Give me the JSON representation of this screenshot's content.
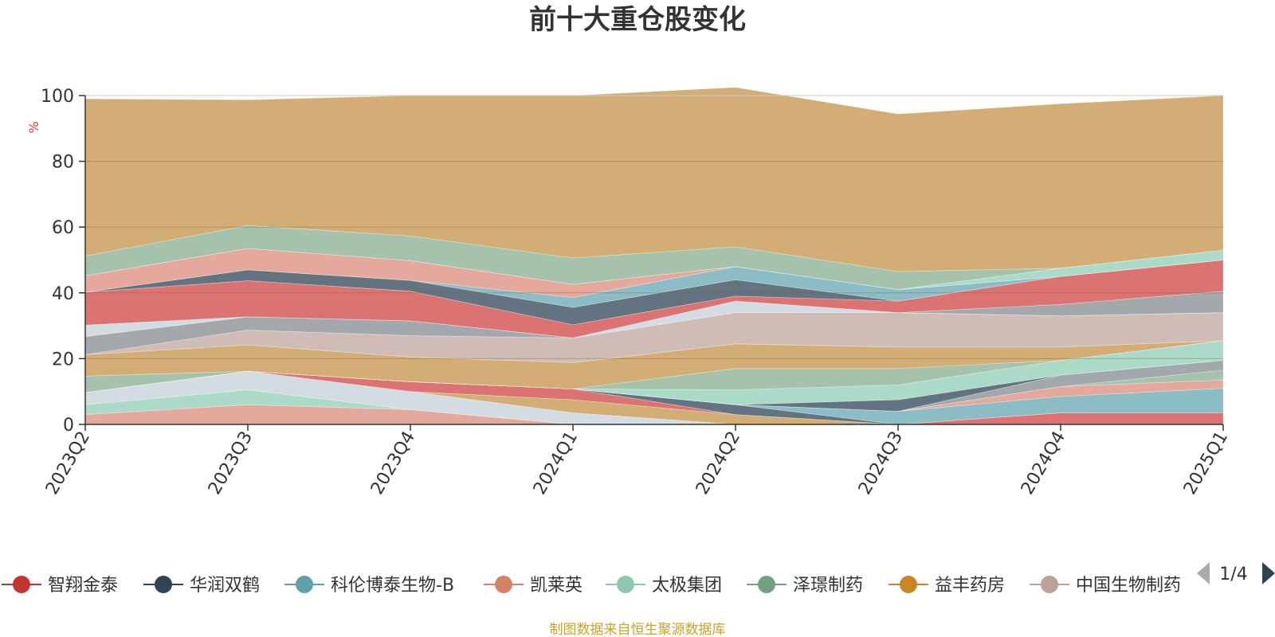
{
  "chart_data": {
    "type": "area",
    "stacked": true,
    "title": "前十大重仓股变化",
    "ylabel": "%",
    "ylim": [
      0,
      100
    ],
    "yticks": [
      0,
      20,
      40,
      60,
      80,
      100
    ],
    "grid": true,
    "categories": [
      "2023Q2",
      "2023Q3",
      "2023Q4",
      "2024Q1",
      "2024Q2",
      "2024Q3",
      "2024Q4",
      "2025Q1"
    ],
    "legend_position": "bottom",
    "legend_page": "1/4",
    "series": [
      {
        "name": "",
        "color": "#e3a497",
        "values": [
          3,
          6,
          4.5,
          0,
          0,
          0,
          0,
          0
        ]
      },
      {
        "name": "",
        "color": "#a8d8c6",
        "values": [
          3,
          4.5,
          0,
          0,
          0,
          0,
          0,
          0
        ]
      },
      {
        "name": "",
        "color": "#d0dae0",
        "values": [
          3.7,
          5.7,
          5.5,
          3.5,
          0,
          0,
          0,
          0
        ]
      },
      {
        "name": "",
        "color": "#d0a96e",
        "values": [
          0,
          0,
          0,
          4,
          3,
          0,
          0,
          0
        ]
      },
      {
        "name": "智翔金泰",
        "color": "#d96b6b",
        "values": [
          0,
          0,
          3,
          3.3,
          0,
          0,
          3.5,
          3.5
        ]
      },
      {
        "name": "华润双鹤",
        "color": "#5c6b79",
        "values": [
          0,
          0,
          0,
          0,
          3,
          0,
          0,
          0
        ]
      },
      {
        "name": "科伦博泰生物-B",
        "color": "#86b8c2",
        "values": [
          0,
          0,
          0,
          0,
          0,
          4,
          5,
          7.5
        ]
      },
      {
        "name": "凯莱英",
        "color": "#e3a497",
        "values": [
          0,
          0,
          0,
          0,
          0,
          0,
          3,
          2.5
        ]
      },
      {
        "name": "泽璟制药",
        "color": "#9fbfa8",
        "values": [
          0,
          0,
          0,
          0,
          0,
          0,
          0,
          3
        ]
      },
      {
        "name": "",
        "color": "#9ea3a8",
        "values": [
          0,
          0,
          0,
          0,
          0,
          0,
          3.5,
          3
        ]
      },
      {
        "name": "",
        "color": "#5c6b79",
        "values": [
          0,
          0,
          0,
          0,
          0,
          3.5,
          0,
          0
        ]
      },
      {
        "name": "太极集团",
        "color": "#a8d8c6",
        "values": [
          0,
          0,
          0,
          0,
          4.5,
          4.5,
          4.5,
          6
        ]
      },
      {
        "name": "",
        "color": "#9fbfa8",
        "values": [
          5,
          0,
          0,
          0,
          6.5,
          5,
          0,
          0
        ]
      },
      {
        "name": "益丰药房",
        "color": "#d0a96e",
        "values": [
          6.5,
          8,
          7.5,
          8,
          7.5,
          6.5,
          4,
          0
        ]
      },
      {
        "name": "中国生物制药",
        "color": "#cdb8b3",
        "values": [
          0,
          4.5,
          6.5,
          7.5,
          9.5,
          10.5,
          9.5,
          8.5
        ]
      },
      {
        "name": "",
        "color": "#9ea3a8",
        "values": [
          5.5,
          4,
          4.5,
          0,
          0,
          0,
          0,
          0
        ]
      },
      {
        "name": "",
        "color": "#d0dae0",
        "values": [
          3.5,
          0,
          0,
          0,
          3.5,
          0,
          0,
          0
        ]
      },
      {
        "name": "",
        "color": "#9ea3a8",
        "values": [
          0,
          0,
          0,
          0,
          0,
          0,
          3.5,
          6.5
        ]
      },
      {
        "name": "",
        "color": "#d96b6b",
        "values": [
          10,
          11,
          9,
          4,
          1.5,
          3.5,
          8.5,
          9.5
        ]
      },
      {
        "name": "",
        "color": "#5c6b79",
        "values": [
          0,
          3.3,
          3.3,
          5.3,
          5,
          0,
          0,
          0
        ]
      },
      {
        "name": "",
        "color": "#86b8c2",
        "values": [
          0,
          0,
          0,
          3,
          4,
          3.5,
          0,
          0
        ]
      },
      {
        "name": "",
        "color": "#e3a497",
        "values": [
          5,
          6.5,
          6,
          4,
          0,
          0,
          0,
          0
        ]
      },
      {
        "name": "",
        "color": "#a8d8c6",
        "values": [
          0,
          0,
          0,
          0,
          0,
          0,
          2.5,
          3
        ]
      },
      {
        "name": "",
        "color": "#9fbfa8",
        "values": [
          6,
          7,
          7.5,
          8,
          6,
          5.5,
          0,
          0
        ]
      },
      {
        "name": "",
        "color": "#d0a96e",
        "values": [
          47.8,
          38.2,
          42.7,
          49.4,
          48.5,
          47.9,
          50,
          47
        ]
      }
    ]
  },
  "legend_items": [
    {
      "label": "智翔金泰",
      "color": "#c23531"
    },
    {
      "label": "华润双鹤",
      "color": "#2f4554"
    },
    {
      "label": "科伦博泰生物-B",
      "color": "#61a0a8"
    },
    {
      "label": "凯莱英",
      "color": "#d48265"
    },
    {
      "label": "太极集团",
      "color": "#91c7ae"
    },
    {
      "label": "泽璟制药",
      "color": "#749f83"
    },
    {
      "label": "益丰药房",
      "color": "#ca8622"
    },
    {
      "label": "中国生物制药",
      "color": "#bda29a"
    }
  ],
  "source": "制图数据来自恒生聚源数据库"
}
